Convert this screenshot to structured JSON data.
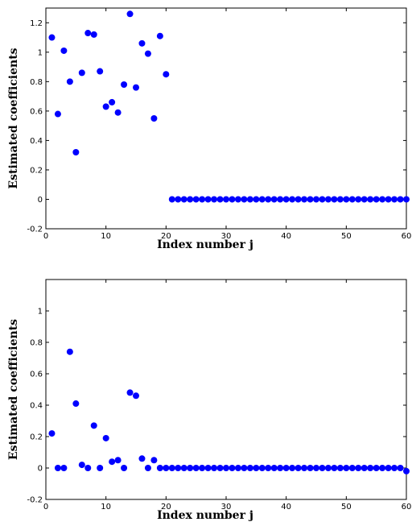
{
  "chart_data": [
    {
      "type": "scatter",
      "xlabel": "Index number j",
      "ylabel": "Estimated coefficients",
      "xlim": [
        0,
        60
      ],
      "ylim": [
        -0.2,
        1.3
      ],
      "xticks": [
        0,
        10,
        20,
        30,
        40,
        50,
        60
      ],
      "yticks": [
        -0.2,
        0,
        0.2,
        0.4,
        0.6,
        0.8,
        1,
        1.2
      ],
      "xtick_labels": [
        "0",
        "10",
        "20",
        "30",
        "40",
        "50",
        "60"
      ],
      "ytick_labels": [
        "-0.2",
        "0",
        "0.2",
        "0.4",
        "0.6",
        "0.8",
        "1",
        "1.2"
      ],
      "grid": false,
      "marker_color": "#0000ff",
      "x": [
        1,
        2,
        3,
        4,
        5,
        6,
        7,
        8,
        9,
        10,
        11,
        12,
        13,
        14,
        15,
        16,
        17,
        18,
        19,
        20,
        21,
        22,
        23,
        24,
        25,
        26,
        27,
        28,
        29,
        30,
        31,
        32,
        33,
        34,
        35,
        36,
        37,
        38,
        39,
        40,
        41,
        42,
        43,
        44,
        45,
        46,
        47,
        48,
        49,
        50,
        51,
        52,
        53,
        54,
        55,
        56,
        57,
        58,
        59,
        60
      ],
      "y": [
        1.1,
        0.58,
        1.01,
        0.8,
        0.32,
        0.86,
        1.13,
        1.12,
        0.87,
        0.63,
        0.66,
        0.59,
        0.78,
        1.26,
        0.76,
        1.06,
        0.99,
        0.55,
        1.11,
        0.85,
        0,
        0,
        0,
        0,
        0,
        0,
        0,
        0,
        0,
        0,
        0,
        0,
        0,
        0,
        0,
        0,
        0,
        0,
        0,
        0,
        0,
        0,
        0,
        0,
        0,
        0,
        0,
        0,
        0,
        0,
        0,
        0,
        0,
        0,
        0,
        0,
        0,
        0,
        0,
        0
      ]
    },
    {
      "type": "scatter",
      "xlabel": "Index number j",
      "ylabel": "Estimated coefficients",
      "xlim": [
        0,
        60
      ],
      "ylim": [
        -0.2,
        1.2
      ],
      "xticks": [
        0,
        10,
        20,
        30,
        40,
        50,
        60
      ],
      "yticks": [
        -0.2,
        0,
        0.2,
        0.4,
        0.6,
        0.8,
        1
      ],
      "xtick_labels": [
        "0",
        "10",
        "20",
        "30",
        "40",
        "50",
        "60"
      ],
      "ytick_labels": [
        "-0.2",
        "0",
        "0.2",
        "0.4",
        "0.6",
        "0.8",
        "1"
      ],
      "grid": false,
      "marker_color": "#0000ff",
      "x": [
        1,
        2,
        3,
        4,
        5,
        6,
        7,
        8,
        9,
        10,
        11,
        12,
        13,
        14,
        15,
        16,
        17,
        18,
        19,
        20,
        21,
        22,
        23,
        24,
        25,
        26,
        27,
        28,
        29,
        30,
        31,
        32,
        33,
        34,
        35,
        36,
        37,
        38,
        39,
        40,
        41,
        42,
        43,
        44,
        45,
        46,
        47,
        48,
        49,
        50,
        51,
        52,
        53,
        54,
        55,
        56,
        57,
        58,
        59,
        60
      ],
      "y": [
        0.22,
        0,
        0,
        0.74,
        0.41,
        0.02,
        0,
        0.27,
        0,
        0.19,
        0.04,
        0.05,
        0,
        0.48,
        0.46,
        0.06,
        0,
        0.05,
        0,
        0,
        0,
        0,
        0,
        0,
        0,
        0,
        0,
        0,
        0,
        0,
        0,
        0,
        0,
        0,
        0,
        0,
        0,
        0,
        0,
        0,
        0,
        0,
        0,
        0,
        0,
        0,
        0,
        0,
        0,
        0,
        0,
        0,
        0,
        0,
        0,
        0,
        0,
        0,
        0,
        -0.02
      ]
    }
  ]
}
